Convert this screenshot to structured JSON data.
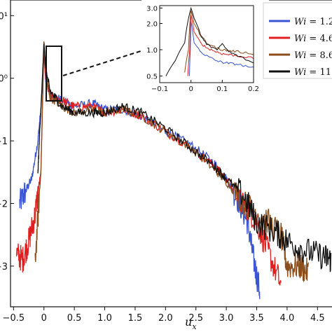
{
  "chart_data": {
    "type": "line",
    "xlabel": "u",
    "xlabel_sub": "x",
    "x_ticks": [
      "−0.5",
      "0",
      "0.5",
      "1.0",
      "1.5",
      "2.0",
      "2.5",
      "3.0",
      "3.5",
      "4.0",
      "4.5"
    ],
    "x_tick_values": [
      -0.5,
      0,
      0.5,
      1.0,
      1.5,
      2.0,
      2.5,
      3.0,
      3.5,
      4.0,
      4.5
    ],
    "xlim": [
      -0.55,
      4.75
    ],
    "y_scale": "log",
    "ylim_exp": [
      -3.65,
      1.25
    ],
    "y_tick_labels": [
      "0¹",
      "0⁰",
      "−1",
      "−2",
      "−3"
    ],
    "y_tick_exps": [
      1,
      0,
      -1,
      -2,
      -3
    ],
    "series": [
      {
        "name_prefix": "Wi",
        "name_suffix": " = 1.2",
        "color": "#3a55d4",
        "x": [
          -0.4,
          -0.3,
          -0.2,
          -0.1,
          -0.05,
          0,
          0.03,
          0.1,
          0.3,
          0.5,
          0.8,
          1.0,
          1.3,
          1.6,
          2.0,
          2.4,
          2.8,
          3.0,
          3.2,
          3.35,
          3.45,
          3.55
        ],
        "log_y": [
          -2.0,
          -1.8,
          -1.6,
          -1.0,
          -0.5,
          0.35,
          -0.05,
          -0.25,
          -0.35,
          -0.45,
          -0.4,
          -0.5,
          -0.5,
          -0.6,
          -0.85,
          -1.05,
          -1.35,
          -1.6,
          -1.95,
          -2.3,
          -2.9,
          -3.4
        ]
      },
      {
        "name_prefix": "Wi",
        "name_suffix": " = 4.6",
        "color": "#e02020",
        "x": [
          -0.45,
          -0.35,
          -0.25,
          -0.15,
          -0.05,
          0,
          0.03,
          0.1,
          0.3,
          0.5,
          0.8,
          1.0,
          1.3,
          1.6,
          2.0,
          2.4,
          2.8,
          3.0,
          3.3,
          3.5,
          3.7,
          3.9
        ],
        "log_y": [
          -2.8,
          -2.9,
          -2.6,
          -2.2,
          -1.5,
          0.5,
          0.0,
          -0.3,
          -0.35,
          -0.45,
          -0.45,
          -0.55,
          -0.5,
          -0.6,
          -0.85,
          -1.1,
          -1.4,
          -1.6,
          -2.0,
          -2.3,
          -2.8,
          -3.3
        ]
      },
      {
        "name_prefix": "Wi",
        "name_suffix": " = 8.6",
        "color": "#8b4e1a",
        "x": [
          -0.15,
          -0.05,
          0,
          0.03,
          0.1,
          0.3,
          0.5,
          0.8,
          1.0,
          1.3,
          1.6,
          2.0,
          2.4,
          2.8,
          3.0,
          3.3,
          3.6,
          3.9,
          4.0,
          4.2,
          4.35
        ],
        "log_y": [
          -3.0,
          -1.5,
          0.6,
          0.1,
          -0.3,
          -0.45,
          -0.55,
          -0.5,
          -0.55,
          -0.5,
          -0.6,
          -0.85,
          -1.1,
          -1.45,
          -1.65,
          -2.0,
          -2.2,
          -2.5,
          -3.0,
          -3.0,
          -3.1
        ]
      },
      {
        "name_prefix": "Wi",
        "name_suffix": " = 11",
        "color": "#111111",
        "x": [
          -0.1,
          -0.05,
          0,
          0.03,
          0.1,
          0.3,
          0.5,
          0.8,
          1.0,
          1.3,
          1.6,
          2.0,
          2.4,
          2.8,
          3.0,
          3.3,
          3.5,
          3.8,
          4.0,
          4.3,
          4.6,
          4.72
        ],
        "log_y": [
          -1.5,
          -0.5,
          0.55,
          0.15,
          -0.2,
          -0.45,
          -0.55,
          -0.55,
          -0.55,
          -0.45,
          -0.55,
          -0.8,
          -1.1,
          -1.4,
          -1.6,
          -1.9,
          -2.3,
          -2.45,
          -2.6,
          -2.75,
          -2.85,
          -2.9
        ]
      }
    ],
    "legend": {
      "placement": "top-right",
      "entries": [
        "Wi = 1.2",
        "Wi = 4.6",
        "Wi = 8.6",
        "Wi = 11"
      ]
    },
    "inset": {
      "xlim": [
        -0.1,
        0.2
      ],
      "x_ticks": [
        "−0.1",
        "0",
        "0.1",
        "0.2"
      ],
      "x_tick_values": [
        -0.1,
        0,
        0.1,
        0.2
      ],
      "ylim": [
        0.42,
        3.2
      ],
      "y_ticks": [
        "0.5",
        "1.0",
        "2.0",
        "3.0"
      ],
      "y_tick_values": [
        0.5,
        1.0,
        2.0,
        3.0
      ],
      "series": [
        {
          "x": [
            -0.005,
            -0.002,
            0.0,
            0.01,
            0.03,
            0.05,
            0.08,
            0.1,
            0.12,
            0.15,
            0.2
          ],
          "y": [
            0.5,
            1.0,
            2.1,
            1.2,
            0.95,
            0.85,
            0.75,
            0.72,
            0.7,
            0.68,
            0.62
          ]
        },
        {
          "x": [
            -0.01,
            -0.004,
            0.0,
            0.01,
            0.03,
            0.05,
            0.08,
            0.1,
            0.12,
            0.15,
            0.2
          ],
          "y": [
            0.5,
            1.0,
            2.5,
            1.6,
            1.2,
            1.05,
            0.95,
            0.9,
            0.88,
            0.85,
            0.8
          ]
        },
        {
          "x": [
            -0.02,
            -0.008,
            0.0,
            0.01,
            0.03,
            0.05,
            0.08,
            0.1,
            0.12,
            0.15,
            0.2
          ],
          "y": [
            0.55,
            1.0,
            2.8,
            2.0,
            1.45,
            1.2,
            1.05,
            1.0,
            0.98,
            0.95,
            0.9
          ]
        },
        {
          "x": [
            -0.08,
            -0.05,
            -0.02,
            0.0,
            0.01,
            0.03,
            0.05,
            0.08,
            0.1,
            0.12,
            0.15,
            0.2
          ],
          "y": [
            0.5,
            0.75,
            1.2,
            3.0,
            2.3,
            1.5,
            1.15,
            1.0,
            1.15,
            0.95,
            0.85,
            0.7
          ]
        }
      ]
    }
  }
}
